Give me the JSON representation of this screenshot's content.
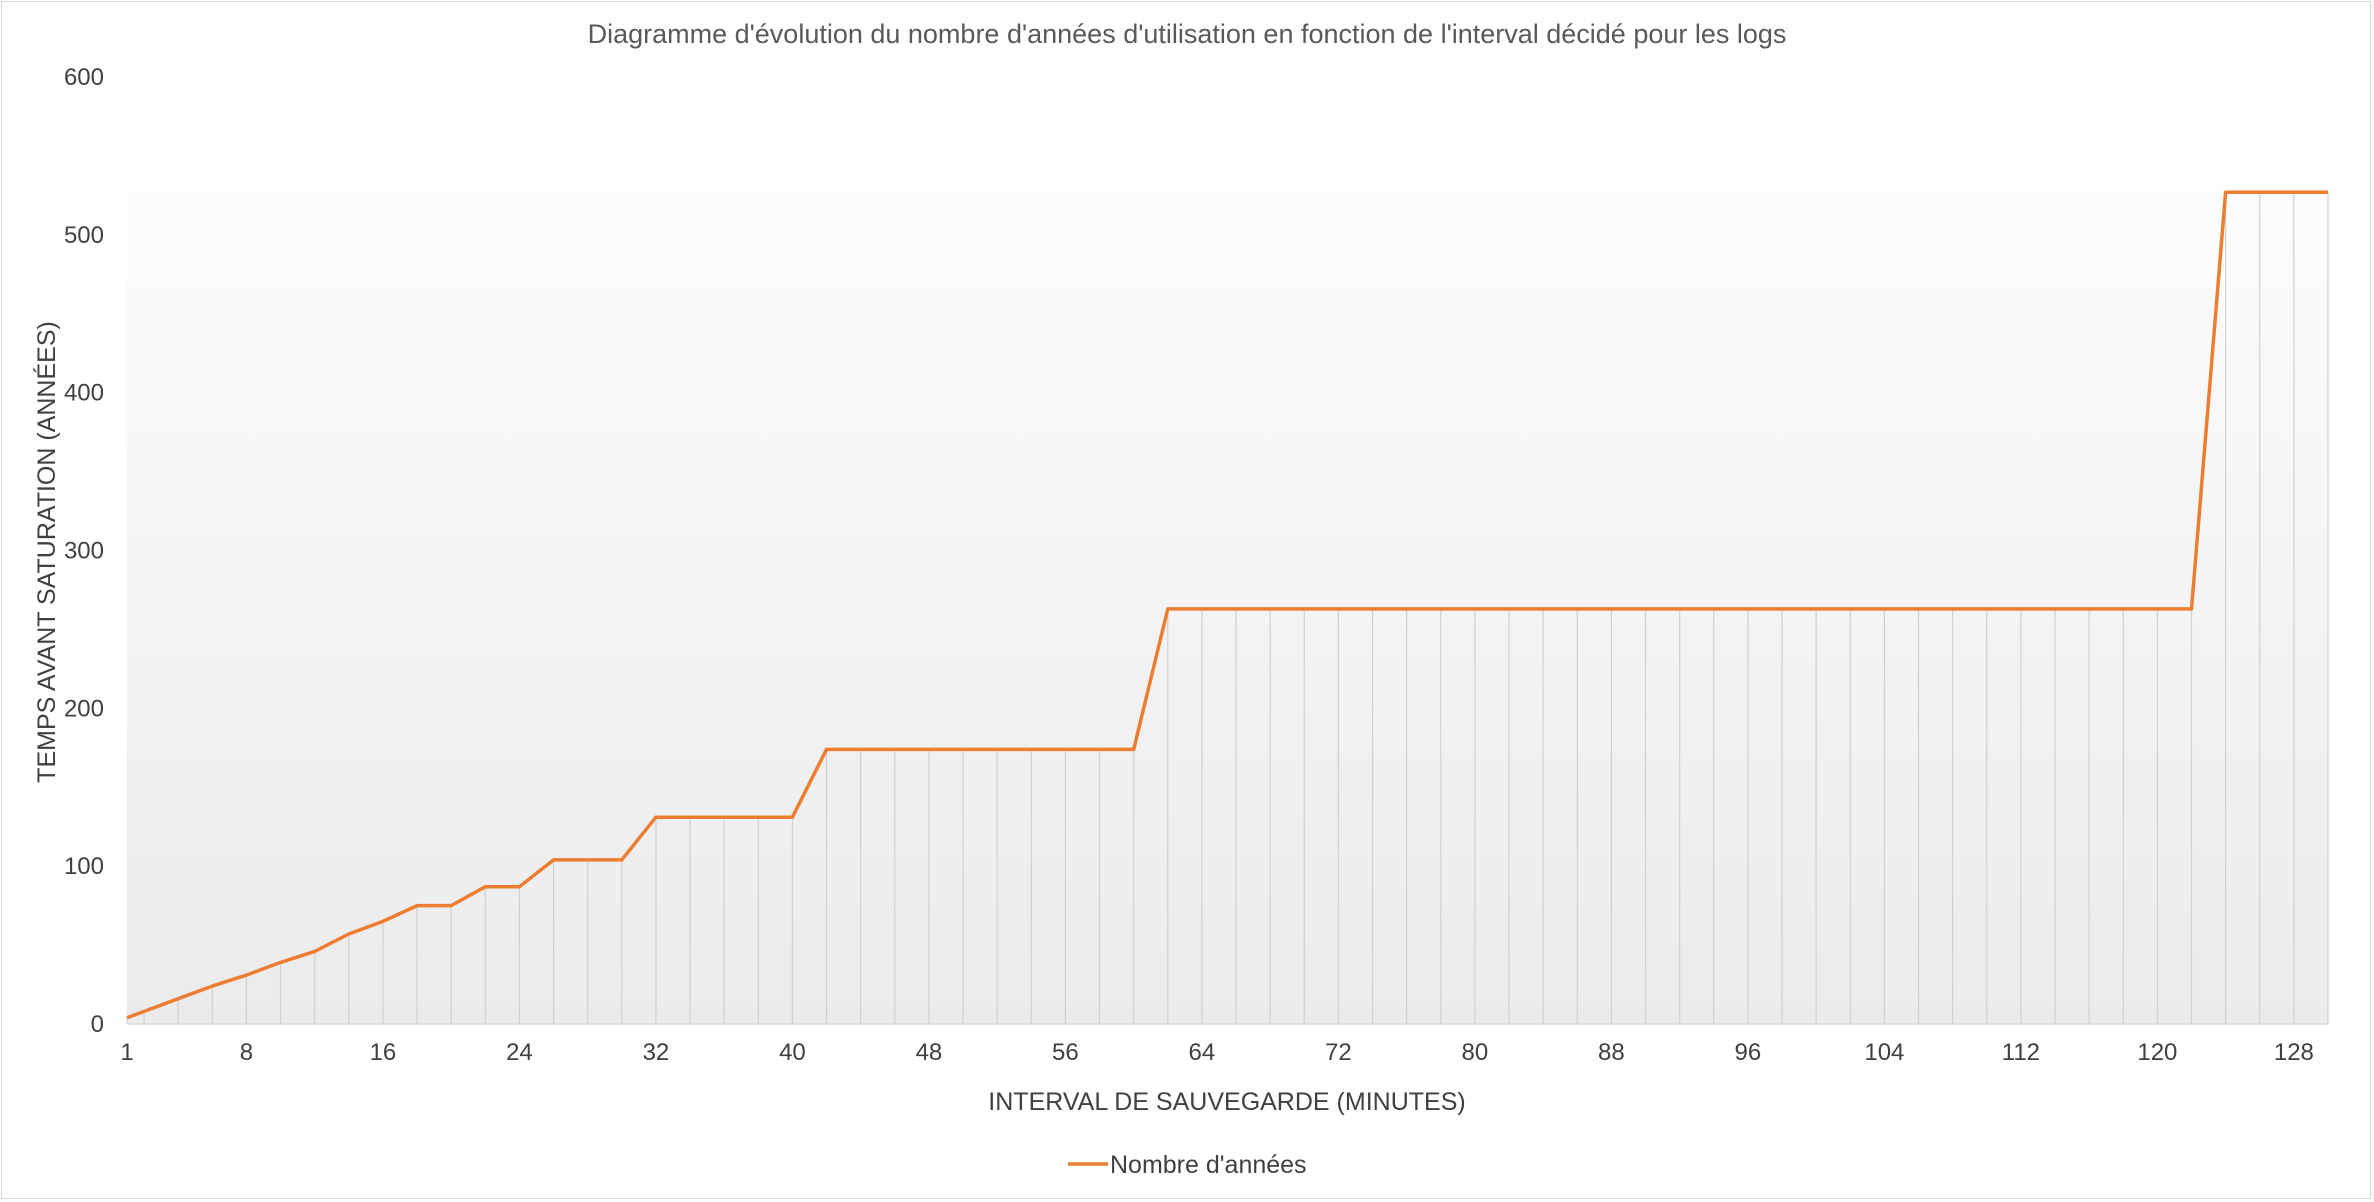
{
  "chart_data": {
    "type": "line",
    "title": "Diagramme  d'évolution  du  nombre  d'années  d'utilisation  en  fonction  de  l'interval  décidé  pour  les  logs",
    "xlabel": "INTERVAL DE SAUVEGARDE (MINUTES)",
    "ylabel": "TEMPS AVANT SATURATION (ANNÉES)",
    "ylim": [
      0,
      600
    ],
    "yticks": [
      "0",
      "100",
      "200",
      "300",
      "400",
      "500",
      "600"
    ],
    "xticks": [
      {
        "x": 1,
        "label": "1"
      },
      {
        "x": 8,
        "label": "8"
      },
      {
        "x": 16,
        "label": "16"
      },
      {
        "x": 24,
        "label": "24"
      },
      {
        "x": 32,
        "label": "32"
      },
      {
        "x": 40,
        "label": "40"
      },
      {
        "x": 48,
        "label": "48"
      },
      {
        "x": 56,
        "label": "56"
      },
      {
        "x": 64,
        "label": "64"
      },
      {
        "x": 72,
        "label": "72"
      },
      {
        "x": 80,
        "label": "80"
      },
      {
        "x": 88,
        "label": "88"
      },
      {
        "x": 96,
        "label": "96"
      },
      {
        "x": 104,
        "label": "104"
      },
      {
        "x": 112,
        "label": "112"
      },
      {
        "x": 120,
        "label": "120"
      },
      {
        "x": 128,
        "label": "128"
      }
    ],
    "grid": "vertical",
    "legend_position": "bottom",
    "line_color": "#ed7d31",
    "series": [
      {
        "name": "Nombre d'années",
        "x": [
          1,
          2,
          4,
          6,
          8,
          10,
          12,
          14,
          16,
          18,
          20,
          22,
          24,
          26,
          28,
          30,
          32,
          34,
          36,
          38,
          40,
          42,
          44,
          46,
          48,
          50,
          52,
          54,
          56,
          58,
          60,
          62,
          64,
          66,
          68,
          70,
          72,
          74,
          76,
          78,
          80,
          82,
          84,
          86,
          88,
          90,
          92,
          94,
          96,
          98,
          100,
          102,
          104,
          106,
          108,
          110,
          112,
          114,
          116,
          118,
          120,
          122,
          124,
          126,
          128,
          130
        ],
        "values": [
          4,
          8,
          16,
          24,
          31,
          39,
          46,
          57,
          65,
          75,
          75,
          87,
          87,
          104,
          104,
          104,
          131,
          131,
          131,
          131,
          131,
          174,
          174,
          174,
          174,
          174,
          174,
          174,
          174,
          174,
          174,
          263,
          263,
          263,
          263,
          263,
          263,
          263,
          263,
          263,
          263,
          263,
          263,
          263,
          263,
          263,
          263,
          263,
          263,
          263,
          263,
          263,
          263,
          263,
          263,
          263,
          263,
          263,
          263,
          263,
          263,
          263,
          527,
          527,
          527,
          527
        ]
      }
    ]
  }
}
